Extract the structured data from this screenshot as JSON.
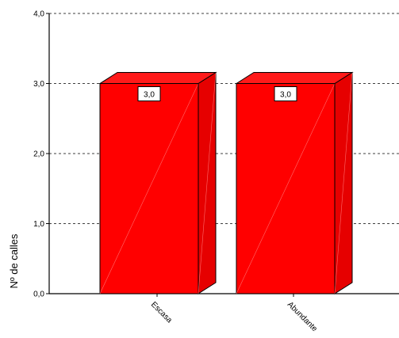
{
  "chart_data": {
    "type": "bar",
    "style": "3d",
    "categories": [
      "Escasa",
      "Abundante"
    ],
    "values": [
      3.0,
      3.0
    ],
    "value_labels": [
      "3,0",
      "3,0"
    ],
    "title": "",
    "xlabel": "",
    "ylabel": "Nº de calles",
    "ylim": [
      0,
      4
    ],
    "yticks": [
      0,
      1,
      2,
      3,
      4
    ],
    "ytick_labels": [
      "0,0",
      "1,0",
      "2,0",
      "3,0",
      "4,0"
    ],
    "grid": "horizontal dashed",
    "legend": "none",
    "bar_color": "#ff0000",
    "bar_side_color": "#e60000",
    "bar_top_color": "#ff1a1a"
  }
}
